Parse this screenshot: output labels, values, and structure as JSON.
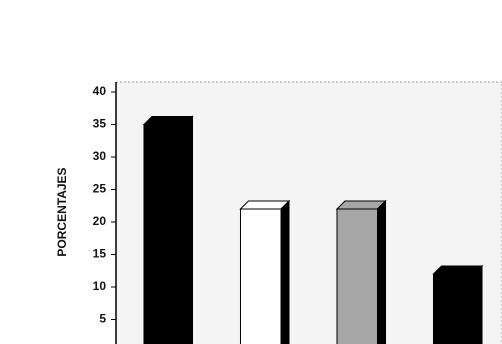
{
  "chart_data": {
    "type": "bar3d",
    "y_label": "PORCENTAJES",
    "categories": [
      null,
      null,
      null,
      null
    ],
    "values": [
      35,
      22,
      22,
      12
    ],
    "colors": [
      "#000000",
      "#ffffff",
      "#a6a6a6",
      "#000000"
    ],
    "ylim": [
      0,
      40
    ],
    "yticks": [
      5,
      10,
      15,
      20,
      25,
      30,
      35,
      40
    ]
  }
}
